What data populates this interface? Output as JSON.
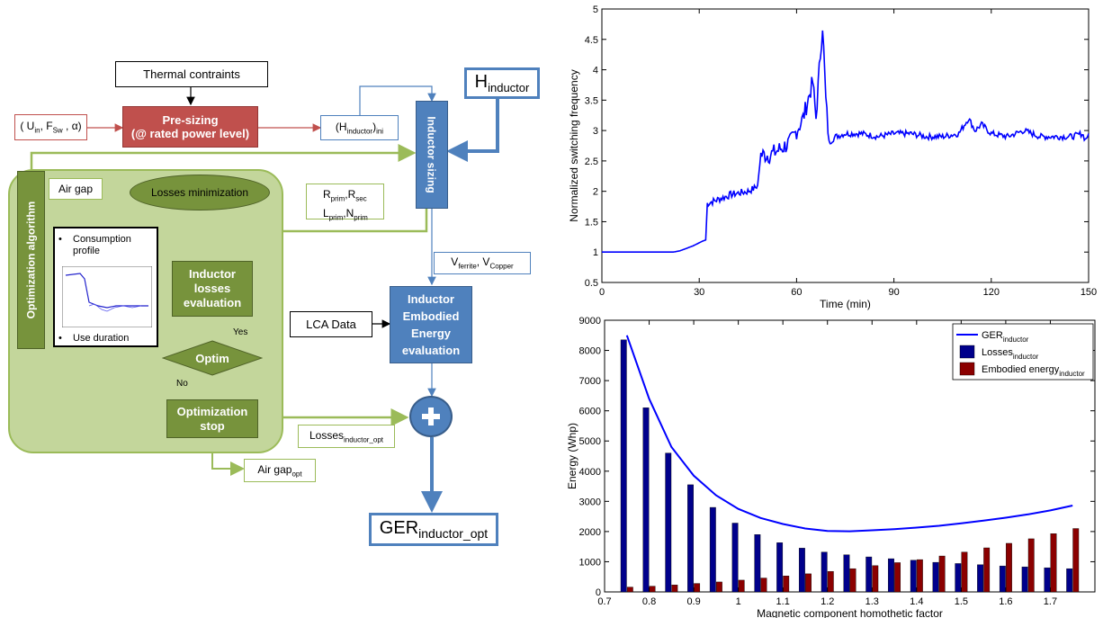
{
  "diagram": {
    "thermal": "Thermal contraints",
    "input_params": "( U",
    "input_sub1": "in",
    "input_mid": ", F",
    "input_sub2": "Sw",
    "input_end": " , α)",
    "presizing_line1": "Pre-sizing",
    "presizing_line2": "(@ rated power level)",
    "h_ini": "(H",
    "h_ini_sub": "inductor",
    "h_ini_end": ")",
    "h_ini_sub2": "ini",
    "h_ind": "H",
    "h_ind_sub": "inductor",
    "inductor_sizing": "Inductor sizing",
    "air_gap": "Air gap",
    "losses_min": "Losses minimization",
    "rprim": "R",
    "rprim_sub": "prim",
    "rsec": ",R",
    "rsec_sub": "sec",
    "lprim": "L",
    "lprim_sub": "prim",
    "nprim": ",N",
    "nprim_sub": "prim",
    "opt_algo": "Optimization algorithm",
    "consumption": "Consumption profile",
    "use_duration": "Use duration",
    "ind_losses": "Inductor losses evaluation",
    "vferrite": "V",
    "vferrite_sub": "ferrite",
    "vcopper": ", V",
    "vcopper_sub": "Copper",
    "lca": "LCA Data",
    "embodied": "Inductor Embodied Energy evaluation",
    "yes": "Yes",
    "no": "No",
    "optim": "Optim",
    "opt_stop": "Optimization stop",
    "losses_opt": "Losses",
    "losses_opt_sub": "inductor_opt",
    "airgap_opt": "Air gap",
    "airgap_opt_sub": "opt",
    "ger": "GER",
    "ger_sub": "inductor_opt",
    "colors": {
      "red": "#c0504d",
      "blue": "#4f81bd",
      "green": "#9bbb59",
      "green_fill": "#77933c"
    }
  },
  "chart_data": [
    {
      "type": "line",
      "title": "",
      "xlabel": "Time (min)",
      "ylabel": "Normalized switching frequency",
      "xlim": [
        0,
        150
      ],
      "ylim": [
        0.5,
        5
      ],
      "xticks": [
        0,
        30,
        60,
        90,
        120,
        150
      ],
      "yticks": [
        0.5,
        1,
        1.5,
        2,
        2.5,
        3,
        3.5,
        4,
        4.5,
        5
      ],
      "series": [
        {
          "x": [
            0,
            22,
            24,
            28,
            31,
            32,
            32.5,
            35,
            40,
            45,
            47,
            48,
            49,
            52,
            55,
            58,
            60,
            62,
            64,
            65,
            66,
            67,
            68,
            69,
            70,
            72,
            75,
            80,
            85,
            90,
            95,
            100,
            105,
            110,
            113,
            115,
            117,
            120,
            125,
            130,
            135,
            140,
            145,
            148,
            149,
            150
          ],
          "y": [
            1.0,
            1.0,
            1.02,
            1.1,
            1.18,
            1.2,
            1.8,
            1.85,
            1.95,
            2.0,
            2.05,
            2.1,
            2.6,
            2.6,
            2.7,
            2.8,
            3.0,
            3.2,
            3.6,
            3.8,
            3.2,
            4.0,
            4.75,
            3.5,
            2.8,
            2.9,
            2.95,
            2.95,
            2.9,
            2.95,
            2.95,
            2.9,
            2.9,
            2.95,
            3.2,
            3.0,
            3.1,
            2.95,
            2.9,
            3.0,
            2.9,
            2.9,
            2.9,
            2.95,
            2.85,
            2.95
          ]
        }
      ]
    },
    {
      "type": "bar",
      "title": "",
      "xlabel": "Magnetic component homothetic factor",
      "ylabel": "Energy (Whp)",
      "xlim": [
        0.7,
        1.8
      ],
      "ylim": [
        0,
        9000
      ],
      "xticks": [
        0.7,
        0.8,
        0.9,
        1,
        1.1,
        1.2,
        1.3,
        1.4,
        1.5,
        1.6,
        1.7
      ],
      "yticks": [
        0,
        1000,
        2000,
        3000,
        4000,
        5000,
        6000,
        7000,
        8000,
        9000
      ],
      "x": [
        0.75,
        0.8,
        0.85,
        0.9,
        0.95,
        1.0,
        1.05,
        1.1,
        1.15,
        1.2,
        1.25,
        1.3,
        1.35,
        1.4,
        1.45,
        1.5,
        1.55,
        1.6,
        1.65,
        1.7,
        1.75
      ],
      "series": [
        {
          "name": "GER",
          "sub": "inductor",
          "kind": "line",
          "color": "#0000ff",
          "values": [
            8500,
            6400,
            4800,
            3850,
            3200,
            2750,
            2450,
            2250,
            2100,
            2020,
            2010,
            2040,
            2080,
            2130,
            2190,
            2270,
            2360,
            2460,
            2570,
            2700,
            2860
          ]
        },
        {
          "name": "Losses",
          "sub": "inductor",
          "kind": "bar",
          "color": "#00008b",
          "values": [
            8350,
            6100,
            4600,
            3550,
            2800,
            2280,
            1900,
            1630,
            1450,
            1320,
            1230,
            1160,
            1100,
            1050,
            980,
            940,
            900,
            860,
            830,
            800,
            770
          ]
        },
        {
          "name": "Embodied energy",
          "sub": "inductor",
          "kind": "bar",
          "color": "#8b0000",
          "values": [
            160,
            190,
            230,
            280,
            330,
            390,
            460,
            530,
            600,
            680,
            770,
            870,
            970,
            1070,
            1190,
            1320,
            1460,
            1610,
            1760,
            1930,
            2100
          ]
        }
      ],
      "legend": "top-right"
    }
  ]
}
